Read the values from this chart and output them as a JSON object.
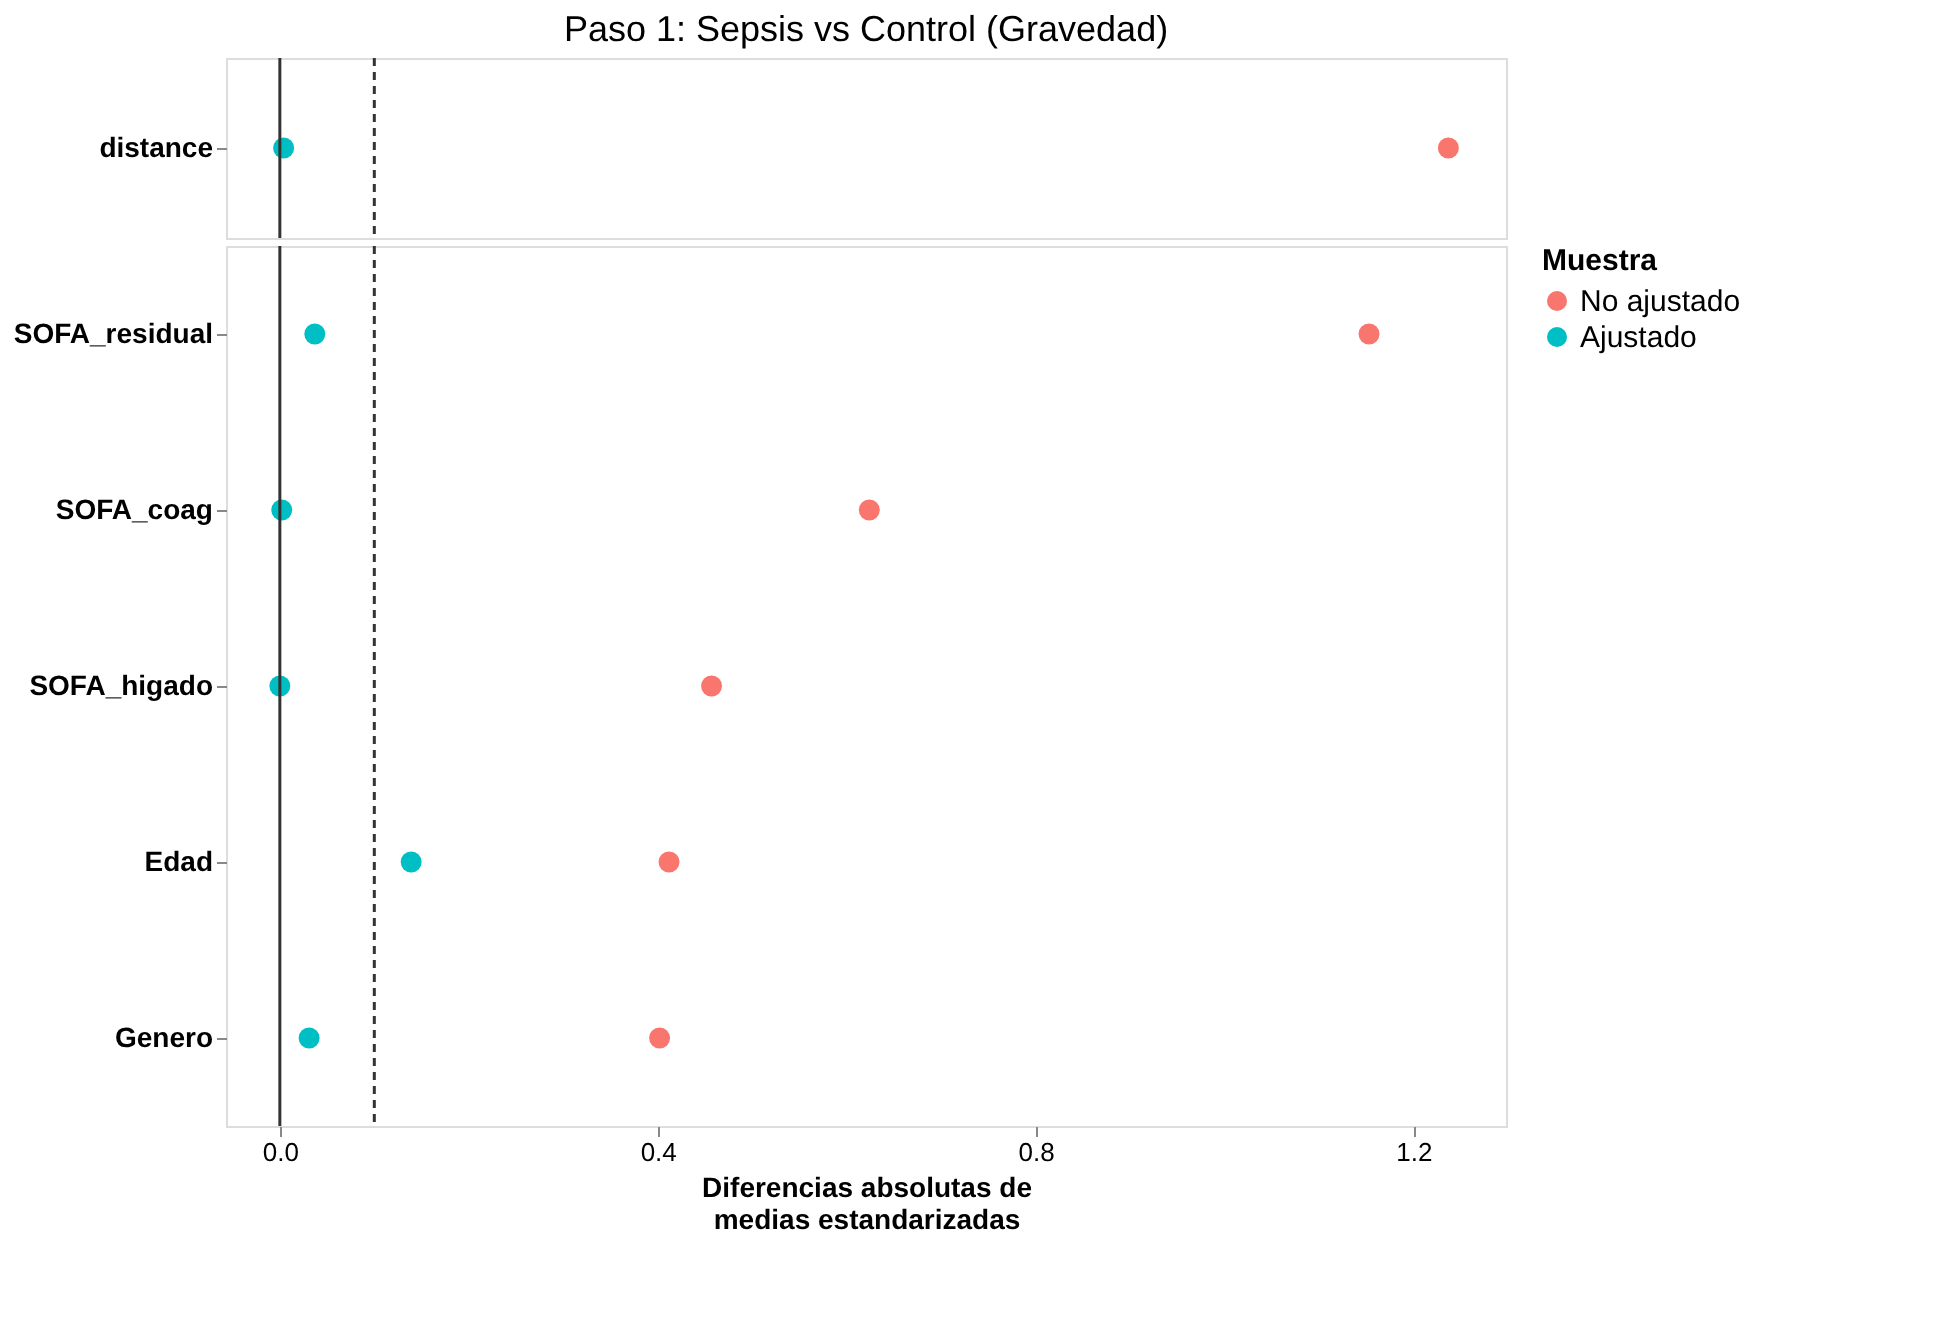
{
  "chart_data": [
    {
      "type": "scatter",
      "title": "Paso 1: Sepsis vs Control (Gravedad)",
      "categories": [
        "distance"
      ],
      "series": [
        {
          "color": "#f8766d",
          "values": [
            1.237
          ]
        },
        {
          "color": "#00bfc4",
          "values": [
            0.004
          ]
        }
      ],
      "orientation": "horizontal",
      "xlim": [
        -0.057,
        1.298
      ],
      "ref_lines": [
        {
          "axis": "x",
          "value": 0,
          "line_style": "solid"
        },
        {
          "axis": "x",
          "value": 0.1,
          "line_style": "dashed"
        }
      ],
      "marker": "circle",
      "grid": false,
      "tick_labels": "y"
    },
    {
      "type": "scatter",
      "categories": [
        "SOFA_residual",
        "SOFA_coag",
        "SOFA_higado",
        "Edad",
        "Genero"
      ],
      "series": [
        {
          "name": "No ajustado",
          "color": "#f8766d",
          "values": [
            1.153,
            0.624,
            0.457,
            0.412,
            0.402
          ]
        },
        {
          "name": "Ajustado",
          "color": "#00bfc4",
          "values": [
            0.037,
            0.002,
            0.0,
            0.139,
            0.031
          ]
        }
      ],
      "orientation": "horizontal",
      "xlim": [
        -0.057,
        1.298
      ],
      "xticks": [
        {
          "value": 0,
          "label": "0.0"
        },
        {
          "value": 0.4,
          "label": "0.4"
        },
        {
          "value": 0.8,
          "label": "0.8"
        },
        {
          "value": 1.2,
          "label": "1.2"
        }
      ],
      "ref_lines": [
        {
          "axis": "x",
          "value": 0,
          "line_style": "solid"
        },
        {
          "axis": "x",
          "value": 0.1,
          "line_style": "dashed"
        }
      ],
      "xlabel": "Diferencias absolutas de medias estandarizadas",
      "legend_title": "Muestra",
      "legend": "right",
      "marker": "circle",
      "grid": false
    }
  ]
}
